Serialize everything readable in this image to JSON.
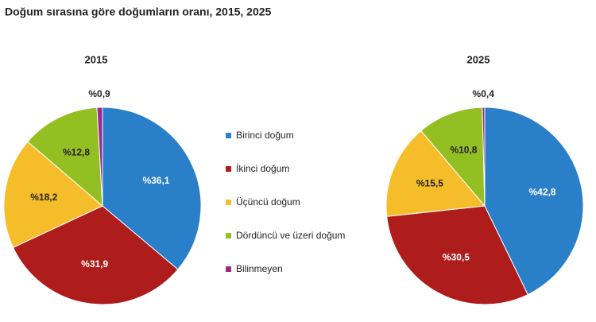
{
  "title": "Doğum sırasına göre doğumların oranı, 2015, 2025",
  "legend": {
    "categories": [
      "Birinci doğum",
      "İkinci doğum",
      "Üçüncü doğum",
      "Dördüncü ve üzeri doğum",
      "Bilinmeyen"
    ],
    "colors": [
      "#2a7fc9",
      "#ae1c1c",
      "#f5bd2a",
      "#93bf22",
      "#9b2a8f"
    ]
  },
  "chart_data": [
    {
      "type": "pie",
      "title": "2015",
      "values": [
        36.1,
        31.9,
        18.2,
        12.8,
        0.9
      ],
      "value_labels": [
        "%36,1",
        "%31,9",
        "%18,2",
        "%12,8",
        "%0,9"
      ]
    },
    {
      "type": "pie",
      "title": "2025",
      "values": [
        42.8,
        30.5,
        15.5,
        10.8,
        0.4
      ],
      "value_labels": [
        "%42,8",
        "%30,5",
        "%15,5",
        "%10,8",
        "%0,4"
      ]
    }
  ]
}
